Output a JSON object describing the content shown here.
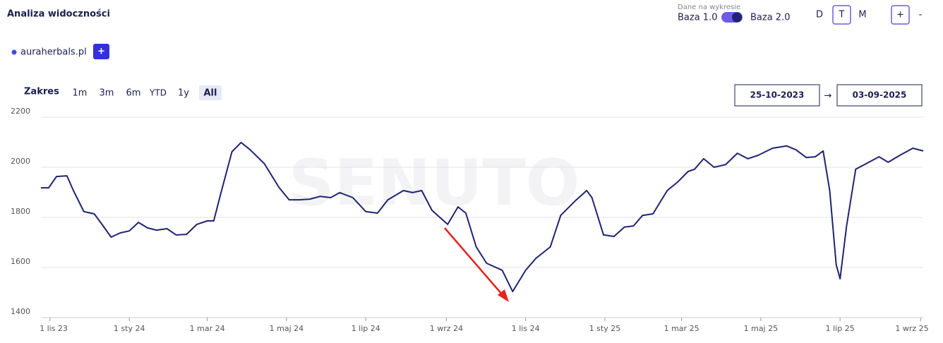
{
  "header": {
    "title": "Analiza widoczności",
    "data_label": "Dane na wykresie",
    "toggle_left": "Baza 1.0",
    "toggle_right": "Baza 2.0",
    "granularity": [
      "D",
      "T",
      "M"
    ],
    "zoom": [
      "+",
      "-"
    ]
  },
  "domain": {
    "add": "+"
  },
  "range": {
    "label": "Zakres",
    "options": [
      "1m",
      "3m",
      "6m",
      "YTD",
      "1y",
      "All"
    ],
    "from": "25-10-2023",
    "arrow": "→",
    "to": "03-09-2025"
  },
  "chart_data": {
    "type": "line",
    "watermark": "SENUTO",
    "x": [
      "2023-10-25",
      "2023-10-31",
      "2023-11-06",
      "2023-11-14",
      "2023-11-19",
      "2023-11-27",
      "2023-12-05",
      "2023-12-11",
      "2023-12-18",
      "2023-12-25",
      "2024-01-01",
      "2024-01-08",
      "2024-01-15",
      "2024-01-22",
      "2024-01-30",
      "2024-02-06",
      "2024-02-14",
      "2024-02-22",
      "2024-03-01",
      "2024-03-06",
      "2024-03-12",
      "2024-03-20",
      "2024-03-27",
      "2024-04-03",
      "2024-04-14",
      "2024-04-25",
      "2024-05-03",
      "2024-05-11",
      "2024-05-19",
      "2024-05-27",
      "2024-06-04",
      "2024-06-11",
      "2024-06-21",
      "2024-07-01",
      "2024-07-10",
      "2024-07-18",
      "2024-07-30",
      "2024-08-06",
      "2024-08-13",
      "2024-08-21",
      "2024-09-02",
      "2024-09-10",
      "2024-09-16",
      "2024-09-24",
      "2024-10-02",
      "2024-10-14",
      "2024-10-22",
      "2024-11-01",
      "2024-11-09",
      "2024-11-20",
      "2024-11-28",
      "2024-12-09",
      "2024-12-18",
      "2024-12-22",
      "2024-12-31",
      "2025-01-08",
      "2025-01-16",
      "2025-01-23",
      "2025-01-30",
      "2025-02-07",
      "2025-02-18",
      "2025-02-26",
      "2025-03-06",
      "2025-03-11",
      "2025-03-18",
      "2025-03-26",
      "2025-04-04",
      "2025-04-13",
      "2025-04-21",
      "2025-04-29",
      "2025-05-10",
      "2025-05-21",
      "2025-05-28",
      "2025-06-05",
      "2025-06-12",
      "2025-06-18",
      "2025-06-23",
      "2025-06-28",
      "2025-07-01",
      "2025-07-06",
      "2025-07-13",
      "2025-07-21",
      "2025-07-31",
      "2025-08-07",
      "2025-08-16",
      "2025-08-26",
      "2025-09-03"
    ],
    "series": [
      {
        "name": "auraherbals.pl",
        "color": "#1f2470",
        "values": [
          1918,
          1918,
          1963,
          1966,
          1907,
          1823,
          1814,
          1772,
          1721,
          1738,
          1746,
          1780,
          1758,
          1749,
          1755,
          1730,
          1732,
          1772,
          1786,
          1786,
          1907,
          2062,
          2099,
          2070,
          2014,
          1921,
          1870,
          1870,
          1873,
          1884,
          1879,
          1899,
          1879,
          1823,
          1817,
          1870,
          1907,
          1899,
          1907,
          1828,
          1772,
          1842,
          1817,
          1682,
          1617,
          1589,
          1504,
          1589,
          1637,
          1682,
          1808,
          1865,
          1907,
          1879,
          1730,
          1724,
          1761,
          1766,
          1808,
          1814,
          1907,
          1941,
          1983,
          1992,
          2034,
          2000,
          2011,
          2056,
          2034,
          2048,
          2076,
          2085,
          2070,
          2039,
          2042,
          2065,
          1907,
          1611,
          1555,
          1766,
          1992,
          2014,
          2042,
          2020,
          2048,
          2076,
          2065
        ]
      }
    ],
    "xlim": [
      "2023-10-25",
      "2025-09-03"
    ],
    "xticks": [
      {
        "value": "2023-11-01",
        "label": "1 lis 23"
      },
      {
        "value": "2024-01-01",
        "label": "1 sty 24"
      },
      {
        "value": "2024-03-01",
        "label": "1 mar 24"
      },
      {
        "value": "2024-05-01",
        "label": "1 maj 24"
      },
      {
        "value": "2024-07-01",
        "label": "1 lip 24"
      },
      {
        "value": "2024-09-01",
        "label": "1 wrz 24"
      },
      {
        "value": "2024-11-01",
        "label": "1 lis 24"
      },
      {
        "value": "2025-01-01",
        "label": "1 sty 25"
      },
      {
        "value": "2025-03-01",
        "label": "1 mar 25"
      },
      {
        "value": "2025-05-01",
        "label": "1 maj 25"
      },
      {
        "value": "2025-07-01",
        "label": "1 lip 25"
      },
      {
        "value": "2025-09-01",
        "label": "1 wrz 25"
      }
    ],
    "ylim": [
      1400,
      2200
    ],
    "yticks": [
      1400,
      1600,
      1800,
      2000,
      2200
    ],
    "grid": true
  }
}
